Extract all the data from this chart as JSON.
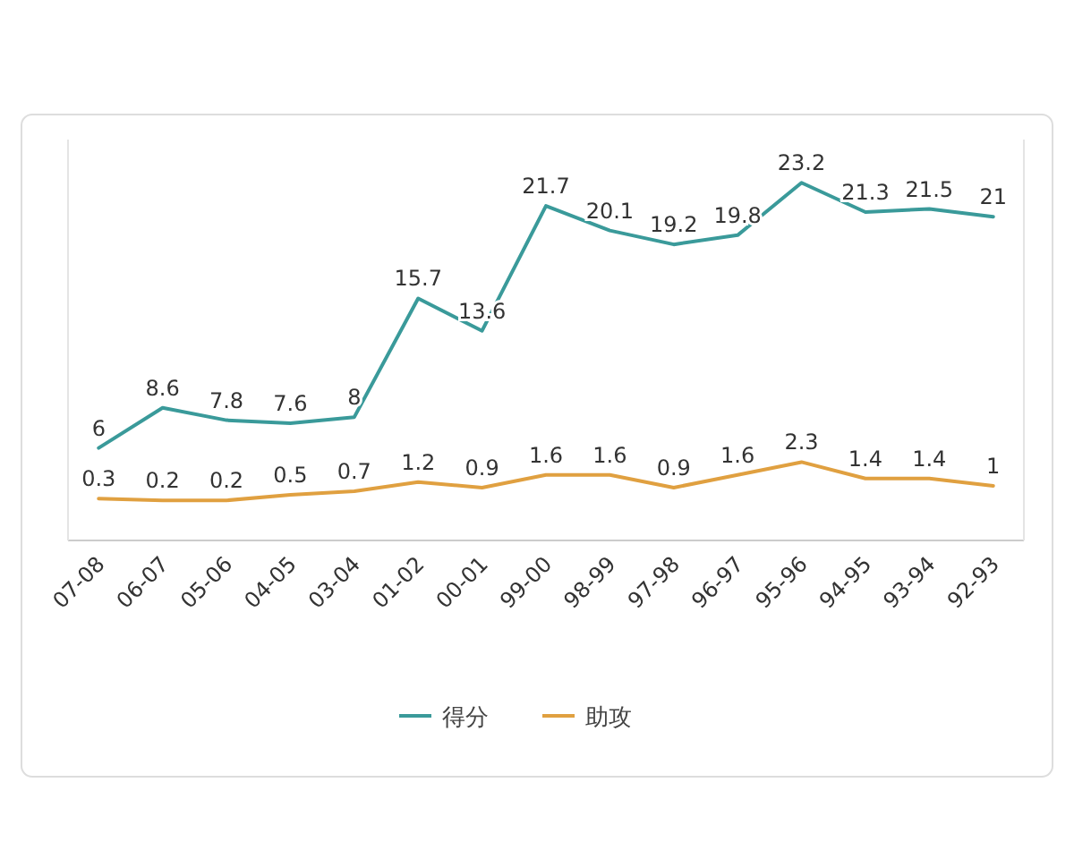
{
  "chart_data": {
    "type": "line",
    "categories": [
      "07-08",
      "06-07",
      "05-06",
      "04-05",
      "03-04",
      "01-02",
      "00-01",
      "99-00",
      "98-99",
      "97-98",
      "96-97",
      "95-96",
      "94-95",
      "93-94",
      "92-93"
    ],
    "series": [
      {
        "name": "得分",
        "color": "#3a9a9a",
        "values": [
          6,
          8.6,
          7.8,
          7.6,
          8,
          15.7,
          13.6,
          21.7,
          20.1,
          19.2,
          19.8,
          23.2,
          21.3,
          21.5,
          21
        ]
      },
      {
        "name": "助攻",
        "color": "#e0a040",
        "axis": "y2",
        "values": [
          0.3,
          0.2,
          0.2,
          0.5,
          0.7,
          1.2,
          0.9,
          1.6,
          1.6,
          0.9,
          1.6,
          2.3,
          1.4,
          1.4,
          1
        ]
      }
    ],
    "ylim": [
      0,
      26
    ],
    "y2lim": [
      -2,
      20
    ],
    "tick_labels": "x",
    "data_labels": true,
    "legend": "bottom",
    "marker": "none",
    "line_style": "solid"
  }
}
